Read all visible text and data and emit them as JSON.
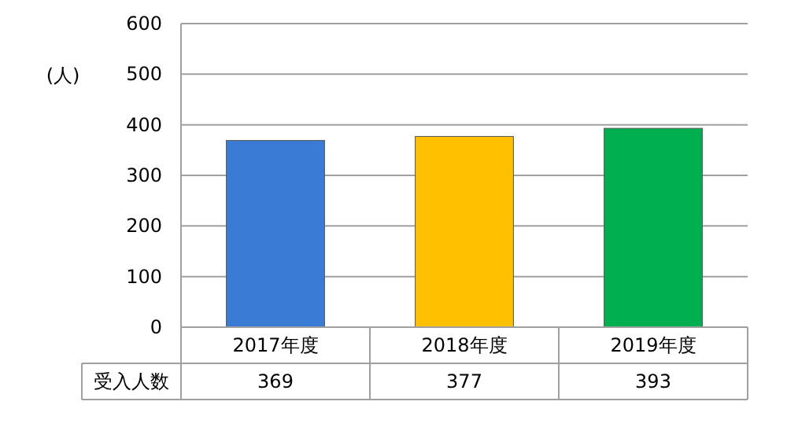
{
  "chart_data": {
    "type": "bar",
    "ylabel": "(人)",
    "categories": [
      "2017年度",
      "2018年度",
      "2019年度"
    ],
    "series": [
      {
        "name": "受入人数",
        "values": [
          369,
          377,
          393
        ],
        "colors": [
          "#3a7bd5",
          "#ffc000",
          "#00b050"
        ]
      }
    ],
    "ylim": [
      0,
      600
    ],
    "yticks": [
      0,
      100,
      200,
      300,
      400,
      500,
      600
    ],
    "grid": "y",
    "data_labels": true
  }
}
